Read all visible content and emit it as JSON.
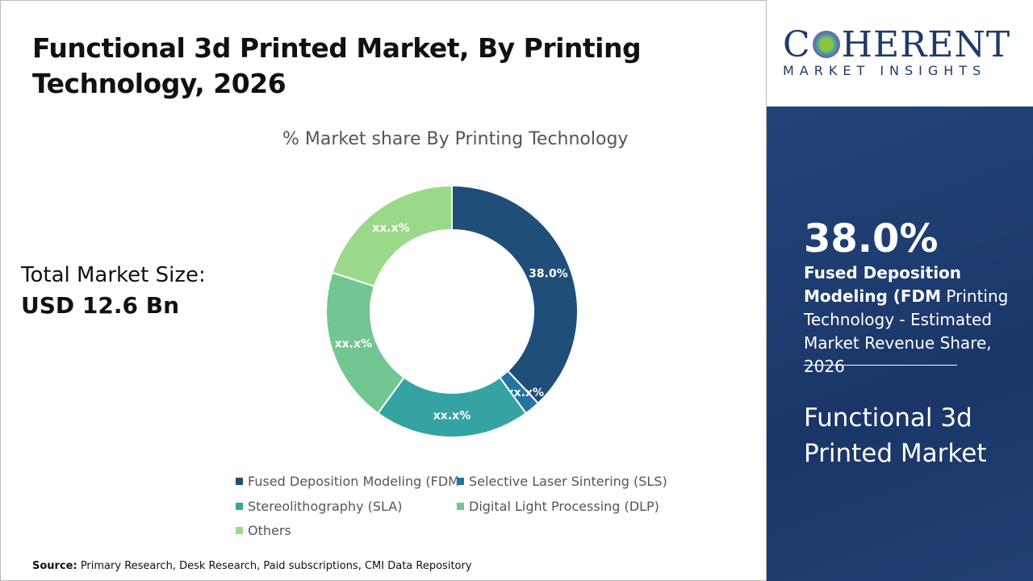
{
  "title": "Functional 3d Printed Market, By Printing Technology, 2026",
  "total_label": "Total Market Size:",
  "total_value": "USD 12.6 Bn",
  "source_label": "Source:",
  "source_text": " Primary Research, Desk Research, Paid subscriptions, CMI Data Repository",
  "logo": {
    "main_1": "C",
    "main_2": "HERENT",
    "sub": "MARKET INSIGHTS"
  },
  "panel": {
    "big": "38.0%",
    "desc_bold": "Fused Deposition Modeling (FDM",
    "desc_rest": " Printing Technology - Estimated Market Revenue Share, 2026",
    "market": "Functional 3d Printed Market"
  },
  "chart_data": {
    "type": "donut",
    "title": "% Market share By Printing Technology",
    "legend_position": "bottom",
    "categories": [
      "Fused Deposition Modeling (FDM",
      "Selective Laser Sintering (SLS)",
      "Stereolithography (SLA)",
      "Digital Light Processing (DLP)",
      "Others"
    ],
    "values": [
      38,
      2,
      20,
      20,
      20
    ],
    "labels": [
      "38.0%",
      "xx.x%",
      "xx.x%",
      "xx.x%",
      "xx.x%"
    ],
    "colors": [
      "#1f4e79",
      "#2474a3",
      "#36a3a3",
      "#72c691",
      "#9bd98a"
    ]
  }
}
